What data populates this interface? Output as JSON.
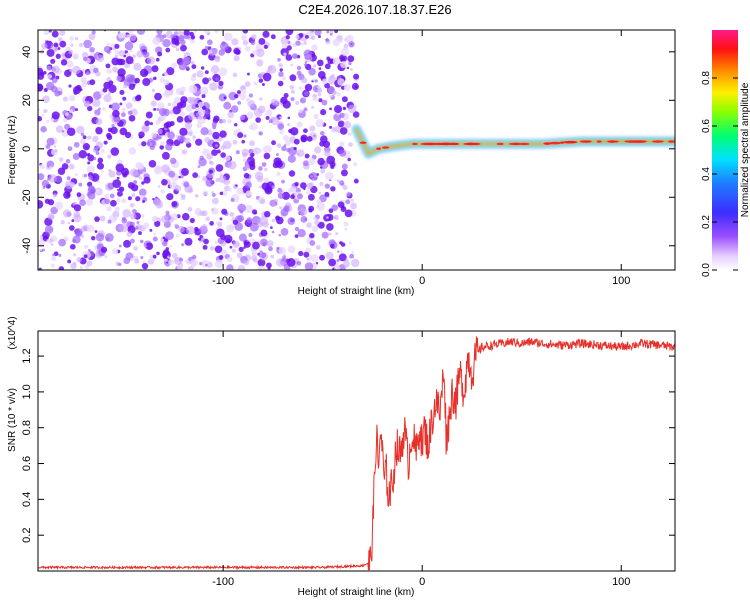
{
  "title": "C2E4.2026.107.18.37.E26",
  "chart_data": [
    {
      "type": "heatmap",
      "xlabel": "Height of straight line (km)",
      "ylabel": "Frequency (Hz)",
      "xlim": [
        -193,
        127
      ],
      "ylim": [
        -50,
        49
      ],
      "xticks": [
        -100,
        0,
        100
      ],
      "yticks": [
        -40,
        -20,
        0,
        20,
        40
      ],
      "grid": false,
      "colorbar": {
        "label": "Normalized spectral amplitude",
        "ticks": [
          "0.0",
          "0.2",
          "0.4",
          "0.6",
          "0.8"
        ],
        "range": [
          0,
          1
        ],
        "colormap": "rainbow (purple-blue-cyan-green-yellow-orange-red-magenta)"
      },
      "regions": [
        {
          "description": "broadband low-amplitude noise",
          "x_range": [
            -193,
            -33
          ],
          "f_range": [
            -50,
            49
          ],
          "amplitude": [
            0.0,
            0.15
          ]
        },
        {
          "description": "narrow tone near 0-3 Hz",
          "x_range": [
            -33,
            127
          ],
          "center_frequency": [
            {
              "x": -33,
              "f": 8
            },
            {
              "x": -30,
              "f": 3
            },
            {
              "x": -27,
              "f": -2
            },
            {
              "x": -22,
              "f": 0
            },
            {
              "x": -15,
              "f": 1
            },
            {
              "x": -5,
              "f": 2
            },
            {
              "x": 0,
              "f": 2
            },
            {
              "x": 20,
              "f": 2
            },
            {
              "x": 40,
              "f": 2
            },
            {
              "x": 60,
              "f": 2
            },
            {
              "x": 80,
              "f": 3
            },
            {
              "x": 100,
              "f": 3
            },
            {
              "x": 127,
              "f": 3
            }
          ],
          "amplitude": [
            0.6,
            1.0
          ]
        }
      ]
    },
    {
      "type": "line",
      "xlabel": "Height of straight line (km)",
      "ylabel": "SNR (10 * v/v)",
      "y_multiplier": "(x10^4)",
      "xlim": [
        -193,
        127
      ],
      "ylim": [
        0,
        1.34
      ],
      "xticks": [
        -100,
        0,
        100
      ],
      "yticks": [
        0.2,
        0.4,
        0.6,
        0.8,
        1.0,
        1.2
      ],
      "grid": false,
      "series": [
        {
          "color": "#e8302a",
          "x": [
            -193,
            -150,
            -100,
            -50,
            -30,
            -26,
            -25,
            -23,
            -22,
            -21,
            -19,
            -18,
            -17,
            -15,
            -13,
            -11,
            -9,
            -7,
            -5,
            -3,
            -1,
            0,
            1,
            3,
            5,
            7,
            9,
            11,
            12,
            13,
            15,
            17,
            19,
            21,
            23,
            25,
            27,
            30,
            35,
            40,
            45,
            50,
            55,
            60,
            70,
            80,
            90,
            100,
            110,
            120,
            127
          ],
          "y": [
            0.02,
            0.02,
            0.02,
            0.02,
            0.03,
            0.05,
            0.2,
            0.78,
            0.55,
            0.8,
            0.5,
            0.55,
            0.42,
            0.48,
            0.7,
            0.65,
            0.8,
            0.6,
            0.78,
            0.65,
            0.82,
            0.68,
            0.8,
            0.7,
            0.85,
            0.95,
            0.88,
            1.15,
            0.75,
            0.8,
            1.0,
            0.95,
            1.1,
            1.0,
            1.2,
            1.1,
            1.2,
            1.25,
            1.26,
            1.27,
            1.28,
            1.27,
            1.28,
            1.27,
            1.26,
            1.27,
            1.26,
            1.25,
            1.27,
            1.26,
            1.25
          ]
        }
      ]
    }
  ]
}
